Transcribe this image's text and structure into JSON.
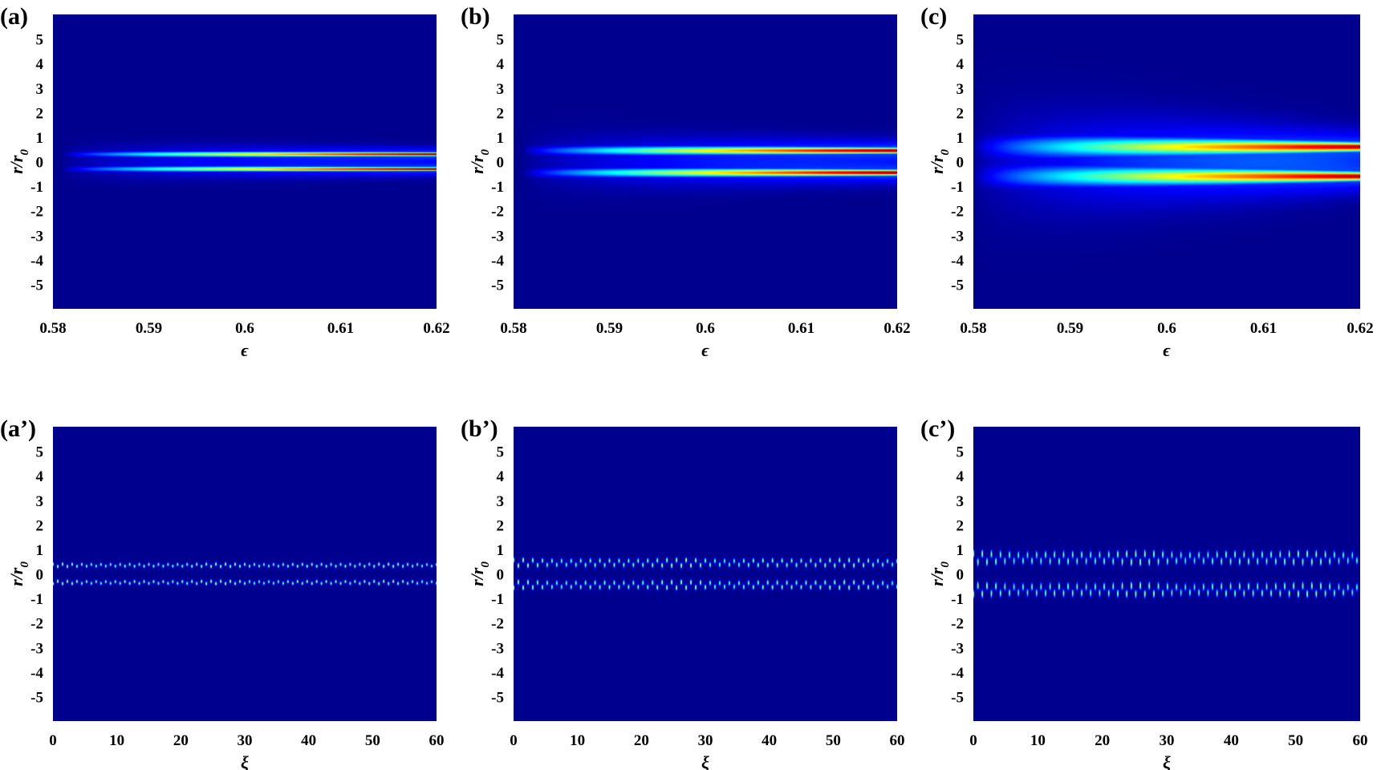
{
  "colors": {
    "background": "#00008f",
    "colormap": [
      "#00008f",
      "#0000ff",
      "#00ffff",
      "#ffff00",
      "#ff0000",
      "#800000"
    ]
  },
  "chart_data": [
    {
      "id": "a",
      "label": "(a)",
      "type": "heatmap",
      "xlabel": "ϵ",
      "ylabel": "r/r",
      "ylabel_sub": "0",
      "xlim": [
        0.58,
        0.62
      ],
      "ylim": [
        -6,
        6
      ],
      "xticks": [
        "0.58",
        "0.59",
        "0.6",
        "0.61",
        "0.62"
      ],
      "yticks": [
        "5",
        "4",
        "3",
        "2",
        "1",
        "0",
        "-1",
        "-2",
        "-3",
        "-4",
        "-5"
      ],
      "mode": "smooth",
      "beam_center": 0.3,
      "beam_width_start": 0.12,
      "beam_width_end": 0.07,
      "onset": 0.581,
      "peak_intensity": 1.0
    },
    {
      "id": "b",
      "label": "(b)",
      "type": "heatmap",
      "xlabel": "ϵ",
      "ylabel": "r/r",
      "ylabel_sub": "0",
      "xlim": [
        0.58,
        0.62
      ],
      "ylim": [
        -6,
        6
      ],
      "xticks": [
        "0.58",
        "0.59",
        "0.6",
        "0.61",
        "0.62"
      ],
      "yticks": [
        "5",
        "4",
        "3",
        "2",
        "1",
        "0",
        "-1",
        "-2",
        "-3",
        "-4",
        "-5"
      ],
      "mode": "smooth",
      "beam_center": 0.45,
      "beam_width_start": 0.2,
      "beam_width_end": 0.11,
      "onset": 0.581,
      "peak_intensity": 1.0
    },
    {
      "id": "c",
      "label": "(c)",
      "type": "heatmap",
      "xlabel": "ϵ",
      "ylabel": "r/r",
      "ylabel_sub": "0",
      "xlim": [
        0.58,
        0.62
      ],
      "ylim": [
        -6,
        6
      ],
      "xticks": [
        "0.58",
        "0.59",
        "0.6",
        "0.61",
        "0.62"
      ],
      "yticks": [
        "5",
        "4",
        "3",
        "2",
        "1",
        "0",
        "-1",
        "-2",
        "-3",
        "-4",
        "-5"
      ],
      "mode": "smooth",
      "beam_center": 0.6,
      "beam_width_start": 0.5,
      "beam_width_end": 0.17,
      "onset": 0.58,
      "peak_intensity": 0.95
    },
    {
      "id": "a2",
      "label": "(a’)",
      "type": "heatmap",
      "xlabel": "ξ",
      "ylabel": "r/r",
      "ylabel_sub": "0",
      "xlim": [
        0,
        60
      ],
      "ylim": [
        -6,
        6
      ],
      "xticks": [
        "0",
        "10",
        "20",
        "30",
        "40",
        "50",
        "60"
      ],
      "yticks": [
        "5",
        "4",
        "3",
        "2",
        "1",
        "0",
        "-1",
        "-2",
        "-3",
        "-4",
        "-5"
      ],
      "mode": "pulsed",
      "beam_center": 0.35,
      "beam_width": 0.09,
      "pulse_period": 1.5,
      "pulse_amplitude": 0.05,
      "peak_intensity": 0.75
    },
    {
      "id": "b2",
      "label": "(b’)",
      "type": "heatmap",
      "xlabel": "ξ",
      "ylabel": "r/r",
      "ylabel_sub": "0",
      "xlim": [
        0,
        60
      ],
      "ylim": [
        -6,
        6
      ],
      "xticks": [
        "0",
        "10",
        "20",
        "30",
        "40",
        "50",
        "60"
      ],
      "yticks": [
        "5",
        "4",
        "3",
        "2",
        "1",
        "0",
        "-1",
        "-2",
        "-3",
        "-4",
        "-5"
      ],
      "mode": "pulsed",
      "beam_center": 0.45,
      "beam_width": 0.13,
      "pulse_period": 1.5,
      "pulse_amplitude": 0.12,
      "peak_intensity": 0.72
    },
    {
      "id": "c2",
      "label": "(c’)",
      "type": "heatmap",
      "xlabel": "ξ",
      "ylabel": "r/r",
      "ylabel_sub": "0",
      "xlim": [
        0,
        60
      ],
      "ylim": [
        -6,
        6
      ],
      "xticks": [
        "0",
        "10",
        "20",
        "30",
        "40",
        "50",
        "60"
      ],
      "yticks": [
        "5",
        "4",
        "3",
        "2",
        "1",
        "0",
        "-1",
        "-2",
        "-3",
        "-4",
        "-5"
      ],
      "mode": "pulsed",
      "beam_center": 0.65,
      "beam_width": 0.2,
      "pulse_period": 1.4,
      "pulse_amplitude": 0.18,
      "peak_intensity": 0.68
    }
  ]
}
